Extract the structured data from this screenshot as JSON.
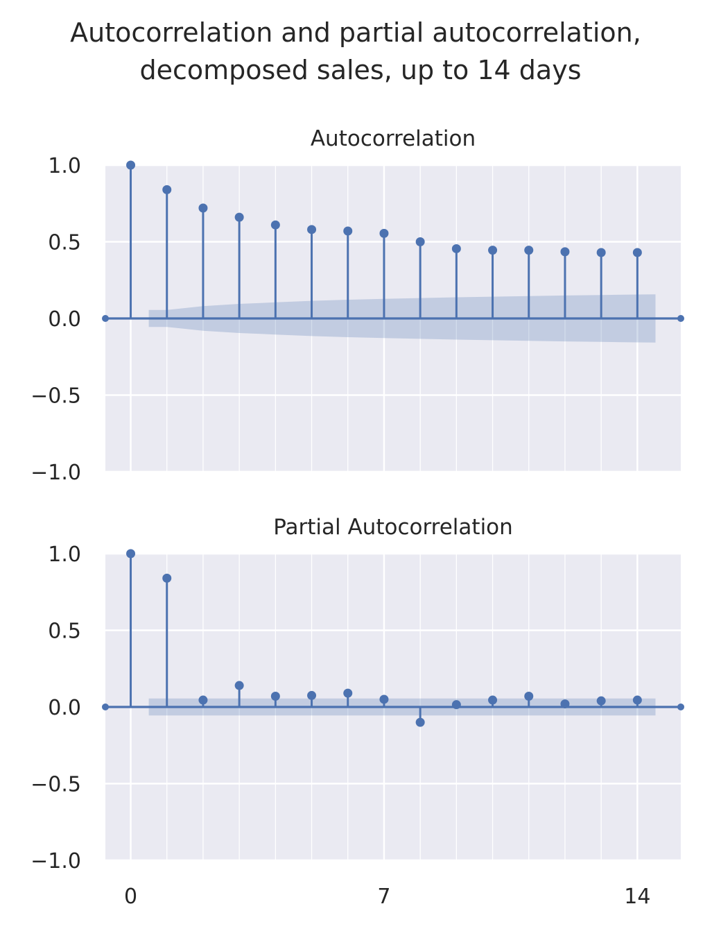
{
  "figure": {
    "title_line1": "Autocorrelation and partial autocorrelation,",
    "title_line2": "decomposed sales, up to 14 days"
  },
  "chart_data": [
    {
      "type": "stem",
      "title": "Autocorrelation",
      "xlabel": "",
      "ylabel": "",
      "xlim": [
        -0.7,
        15.2
      ],
      "ylim": [
        -1.0,
        1.0
      ],
      "xticks": [
        0,
        7,
        14
      ],
      "xtick_labels": [
        "",
        "",
        ""
      ],
      "yticks": [
        1.0,
        0.5,
        0.0,
        -0.5,
        -1.0
      ],
      "ytick_labels": [
        "1.0",
        "0.5",
        "0.0",
        "−0.5",
        "−1.0"
      ],
      "grid": true,
      "lags": [
        0,
        1,
        2,
        3,
        4,
        5,
        6,
        7,
        8,
        9,
        10,
        11,
        12,
        13,
        14
      ],
      "values": [
        1.0,
        0.84,
        0.72,
        0.66,
        0.61,
        0.58,
        0.57,
        0.555,
        0.5,
        0.455,
        0.445,
        0.445,
        0.435,
        0.43,
        0.43
      ],
      "confidence_band": {
        "lags": [
          0.5,
          1,
          2,
          3,
          4,
          5,
          6,
          7,
          8,
          9,
          10,
          11,
          12,
          13,
          14,
          14.5
        ],
        "upper": [
          0.055,
          0.055,
          0.08,
          0.095,
          0.105,
          0.115,
          0.122,
          0.128,
          0.133,
          0.138,
          0.142,
          0.146,
          0.15,
          0.153,
          0.156,
          0.157
        ],
        "lower": [
          -0.055,
          -0.055,
          -0.08,
          -0.095,
          -0.105,
          -0.115,
          -0.122,
          -0.128,
          -0.133,
          -0.138,
          -0.142,
          -0.146,
          -0.15,
          -0.153,
          -0.156,
          -0.157
        ]
      },
      "colors": {
        "series": "#4c72b0",
        "background": "#eaeaf2",
        "grid": "#ffffff"
      }
    },
    {
      "type": "stem",
      "title": "Partial Autocorrelation",
      "xlabel": "",
      "ylabel": "",
      "xlim": [
        -0.7,
        15.2
      ],
      "ylim": [
        -1.0,
        1.0
      ],
      "xticks": [
        0,
        7,
        14
      ],
      "xtick_labels": [
        "0",
        "7",
        "14"
      ],
      "yticks": [
        1.0,
        0.5,
        0.0,
        -0.5,
        -1.0
      ],
      "ytick_labels": [
        "1.0",
        "0.5",
        "0.0",
        "−0.5",
        "−1.0"
      ],
      "grid": true,
      "lags": [
        0,
        1,
        2,
        3,
        4,
        5,
        6,
        7,
        8,
        9,
        10,
        11,
        12,
        13,
        14
      ],
      "values": [
        1.0,
        0.84,
        0.045,
        0.14,
        0.07,
        0.075,
        0.09,
        0.05,
        -0.1,
        0.015,
        0.045,
        0.07,
        0.02,
        0.04,
        0.045
      ],
      "confidence_band": {
        "lags": [
          0.5,
          14.5
        ],
        "upper": [
          0.055,
          0.055
        ],
        "lower": [
          -0.055,
          -0.055
        ]
      },
      "colors": {
        "series": "#4c72b0",
        "background": "#eaeaf2",
        "grid": "#ffffff"
      }
    }
  ]
}
